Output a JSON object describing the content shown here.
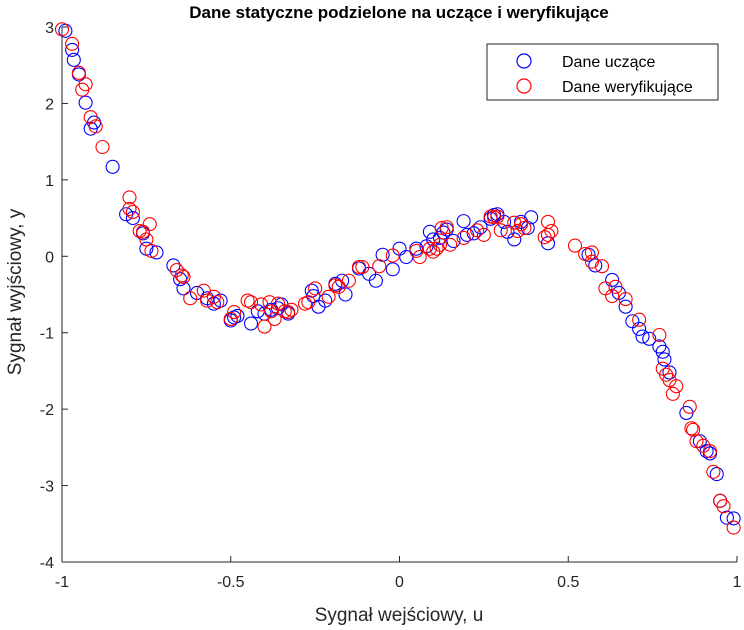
{
  "chart_data": {
    "type": "scatter",
    "title": "Dane statyczne podzielone na uczące i weryfikujące",
    "xlabel": "Sygnał wejściowy, u",
    "ylabel": "Sygnał wyjściowy, y",
    "xlim": [
      -1,
      1
    ],
    "ylim": [
      -4,
      3
    ],
    "xticks": [
      -1,
      -0.5,
      0,
      0.5,
      1
    ],
    "xtick_labels": [
      "-1",
      "-0.5",
      "0",
      "0.5",
      "1"
    ],
    "yticks": [
      -4,
      -3,
      -2,
      -1,
      0,
      1,
      2,
      3
    ],
    "ytick_labels": [
      "-4",
      "-3",
      "-2",
      "-1",
      "0",
      "1",
      "2",
      "3"
    ],
    "grid": false,
    "legend_position": "top-right",
    "series": [
      {
        "name": "Dane uczące",
        "color": "#0000ff",
        "marker": "open-circle",
        "points": [
          [
            -0.99,
            2.95
          ],
          [
            -0.97,
            2.7
          ],
          [
            -0.965,
            2.57
          ],
          [
            -0.95,
            2.38
          ],
          [
            -0.93,
            2.01
          ],
          [
            -0.915,
            1.67
          ],
          [
            -0.905,
            1.75
          ],
          [
            -0.85,
            1.17
          ],
          [
            -0.81,
            0.55
          ],
          [
            -0.79,
            0.5
          ],
          [
            -0.76,
            0.3
          ],
          [
            -0.75,
            0.1
          ],
          [
            -0.72,
            0.05
          ],
          [
            -0.67,
            -0.12
          ],
          [
            -0.65,
            -0.3
          ],
          [
            -0.64,
            -0.42
          ],
          [
            -0.6,
            -0.48
          ],
          [
            -0.57,
            -0.55
          ],
          [
            -0.55,
            -0.62
          ],
          [
            -0.53,
            -0.58
          ],
          [
            -0.5,
            -0.84
          ],
          [
            -0.49,
            -0.8
          ],
          [
            -0.48,
            -0.78
          ],
          [
            -0.44,
            -0.88
          ],
          [
            -0.42,
            -0.72
          ],
          [
            -0.4,
            -0.75
          ],
          [
            -0.38,
            -0.7
          ],
          [
            -0.36,
            -0.68
          ],
          [
            -0.35,
            -0.63
          ],
          [
            -0.33,
            -0.75
          ],
          [
            -0.26,
            -0.45
          ],
          [
            -0.255,
            -0.52
          ],
          [
            -0.24,
            -0.66
          ],
          [
            -0.22,
            -0.58
          ],
          [
            -0.19,
            -0.36
          ],
          [
            -0.17,
            -0.32
          ],
          [
            -0.16,
            -0.5
          ],
          [
            -0.12,
            -0.16
          ],
          [
            -0.09,
            -0.23
          ],
          [
            -0.07,
            -0.32
          ],
          [
            -0.05,
            0.02
          ],
          [
            -0.02,
            -0.17
          ],
          [
            0.0,
            0.1
          ],
          [
            0.02,
            -0.01
          ],
          [
            0.05,
            0.1
          ],
          [
            0.08,
            0.13
          ],
          [
            0.09,
            0.32
          ],
          [
            0.1,
            0.22
          ],
          [
            0.12,
            0.24
          ],
          [
            0.13,
            0.31
          ],
          [
            0.14,
            0.35
          ],
          [
            0.16,
            0.2
          ],
          [
            0.19,
            0.46
          ],
          [
            0.2,
            0.28
          ],
          [
            0.22,
            0.3
          ],
          [
            0.24,
            0.38
          ],
          [
            0.27,
            0.49
          ],
          [
            0.28,
            0.54
          ],
          [
            0.29,
            0.55
          ],
          [
            0.31,
            0.45
          ],
          [
            0.32,
            0.32
          ],
          [
            0.34,
            0.22
          ],
          [
            0.36,
            0.45
          ],
          [
            0.38,
            0.37
          ],
          [
            0.39,
            0.51
          ],
          [
            0.44,
            0.17
          ],
          [
            0.56,
            0.02
          ],
          [
            0.58,
            -0.12
          ],
          [
            0.63,
            -0.31
          ],
          [
            0.65,
            -0.48
          ],
          [
            0.67,
            -0.66
          ],
          [
            0.69,
            -0.85
          ],
          [
            0.71,
            -0.95
          ],
          [
            0.72,
            -1.05
          ],
          [
            0.74,
            -1.08
          ],
          [
            0.77,
            -1.18
          ],
          [
            0.78,
            -1.25
          ],
          [
            0.785,
            -1.35
          ],
          [
            0.8,
            -1.52
          ],
          [
            0.85,
            -2.05
          ],
          [
            0.89,
            -2.42
          ],
          [
            0.91,
            -2.55
          ],
          [
            0.92,
            -2.58
          ],
          [
            0.94,
            -2.85
          ],
          [
            0.95,
            -3.2
          ],
          [
            0.97,
            -3.42
          ],
          [
            0.99,
            -3.43
          ]
        ]
      },
      {
        "name": "Dane weryfikujące",
        "color": "#ff0000",
        "marker": "open-circle",
        "points": [
          [
            -1.0,
            2.97
          ],
          [
            -0.97,
            2.78
          ],
          [
            -0.95,
            2.4
          ],
          [
            -0.94,
            2.18
          ],
          [
            -0.93,
            2.25
          ],
          [
            -0.915,
            1.82
          ],
          [
            -0.9,
            1.7
          ],
          [
            -0.88,
            1.43
          ],
          [
            -0.8,
            0.77
          ],
          [
            -0.8,
            0.62
          ],
          [
            -0.79,
            0.58
          ],
          [
            -0.77,
            0.33
          ],
          [
            -0.76,
            0.32
          ],
          [
            -0.75,
            0.22
          ],
          [
            -0.74,
            0.42
          ],
          [
            -0.735,
            0.07
          ],
          [
            -0.66,
            -0.18
          ],
          [
            -0.645,
            -0.25
          ],
          [
            -0.64,
            -0.27
          ],
          [
            -0.62,
            -0.55
          ],
          [
            -0.58,
            -0.45
          ],
          [
            -0.57,
            -0.58
          ],
          [
            -0.55,
            -0.53
          ],
          [
            -0.54,
            -0.6
          ],
          [
            -0.5,
            -0.82
          ],
          [
            -0.49,
            -0.73
          ],
          [
            -0.45,
            -0.58
          ],
          [
            -0.44,
            -0.6
          ],
          [
            -0.41,
            -0.63
          ],
          [
            -0.4,
            -0.92
          ],
          [
            -0.385,
            -0.6
          ],
          [
            -0.38,
            -0.72
          ],
          [
            -0.37,
            -0.82
          ],
          [
            -0.36,
            -0.62
          ],
          [
            -0.34,
            -0.72
          ],
          [
            -0.33,
            -0.73
          ],
          [
            -0.32,
            -0.7
          ],
          [
            -0.28,
            -0.62
          ],
          [
            -0.27,
            -0.6
          ],
          [
            -0.25,
            -0.42
          ],
          [
            -0.21,
            -0.53
          ],
          [
            -0.19,
            -0.38
          ],
          [
            -0.18,
            -0.4
          ],
          [
            -0.15,
            -0.32
          ],
          [
            -0.12,
            -0.14
          ],
          [
            -0.11,
            -0.14
          ],
          [
            -0.06,
            -0.13
          ],
          [
            -0.02,
            0.01
          ],
          [
            0.05,
            0.07
          ],
          [
            0.06,
            -0.01
          ],
          [
            0.09,
            0.1
          ],
          [
            0.1,
            0.06
          ],
          [
            0.11,
            0.1
          ],
          [
            0.12,
            0.15
          ],
          [
            0.125,
            0.37
          ],
          [
            0.14,
            0.38
          ],
          [
            0.15,
            0.15
          ],
          [
            0.19,
            0.24
          ],
          [
            0.23,
            0.34
          ],
          [
            0.25,
            0.28
          ],
          [
            0.27,
            0.52
          ],
          [
            0.28,
            0.51
          ],
          [
            0.29,
            0.52
          ],
          [
            0.3,
            0.34
          ],
          [
            0.34,
            0.44
          ],
          [
            0.35,
            0.33
          ],
          [
            0.36,
            0.42
          ],
          [
            0.37,
            0.37
          ],
          [
            0.43,
            0.25
          ],
          [
            0.44,
            0.28
          ],
          [
            0.44,
            0.45
          ],
          [
            0.45,
            0.33
          ],
          [
            0.52,
            0.14
          ],
          [
            0.55,
            0.03
          ],
          [
            0.57,
            0.05
          ],
          [
            0.57,
            -0.07
          ],
          [
            0.6,
            -0.13
          ],
          [
            0.61,
            -0.42
          ],
          [
            0.63,
            -0.52
          ],
          [
            0.64,
            -0.4
          ],
          [
            0.67,
            -0.56
          ],
          [
            0.71,
            -0.83
          ],
          [
            0.77,
            -1.03
          ],
          [
            0.78,
            -1.47
          ],
          [
            0.79,
            -1.55
          ],
          [
            0.8,
            -1.62
          ],
          [
            0.81,
            -1.8
          ],
          [
            0.82,
            -1.7
          ],
          [
            0.86,
            -1.97
          ],
          [
            0.865,
            -2.25
          ],
          [
            0.87,
            -2.27
          ],
          [
            0.88,
            -2.42
          ],
          [
            0.9,
            -2.48
          ],
          [
            0.92,
            -2.55
          ],
          [
            0.93,
            -2.82
          ],
          [
            0.95,
            -3.2
          ],
          [
            0.96,
            -3.27
          ],
          [
            0.99,
            -3.55
          ]
        ]
      }
    ]
  }
}
